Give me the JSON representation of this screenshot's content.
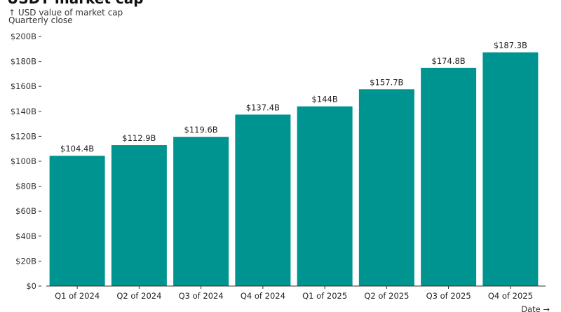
{
  "chart_data": {
    "type": "bar",
    "title": "USDT market cap",
    "ylabel": "↑ USD value of market cap",
    "subtitle": "Quarterly close",
    "xlabel": "Date →",
    "categories": [
      "Q1 of 2024",
      "Q2 of 2024",
      "Q3 of 2024",
      "Q4 of 2024",
      "Q1 of 2025",
      "Q2 of 2025",
      "Q3 of 2025",
      "Q4 of 2025"
    ],
    "values": [
      104.4,
      112.9,
      119.6,
      137.4,
      144,
      157.7,
      174.8,
      187.3
    ],
    "data_labels": [
      "$104.4B",
      "$112.9B",
      "$119.6B",
      "$137.4B",
      "$144B",
      "$157.7B",
      "$174.8B",
      "$187.3B"
    ],
    "yticks": [
      0,
      20,
      40,
      60,
      80,
      100,
      120,
      140,
      160,
      180,
      200
    ],
    "ytick_labels": [
      "$0",
      "$20B",
      "$40B",
      "$60B",
      "$80B",
      "$100B",
      "$120B",
      "$140B",
      "$160B",
      "$180B",
      "$200B"
    ],
    "ylim": [
      0,
      200
    ],
    "grid": false,
    "bar_color": "#009490"
  }
}
